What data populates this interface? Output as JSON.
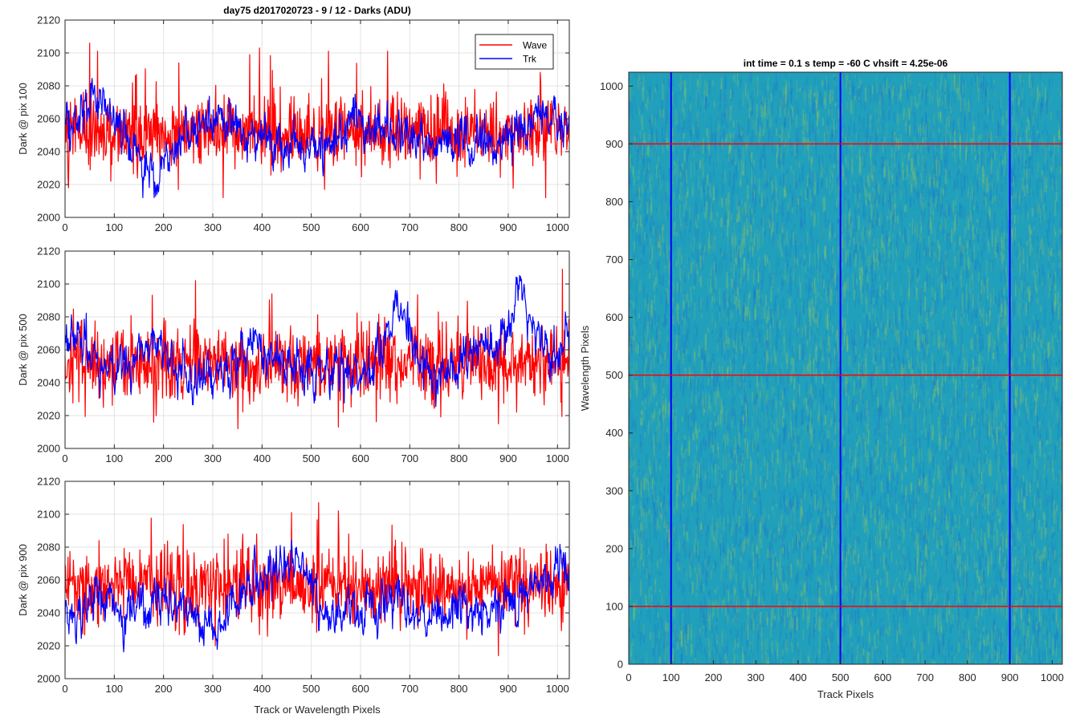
{
  "figure": {
    "title": "day75 d2017020723 - 9 / 12 - Darks (ADU)"
  },
  "chart_data": [
    {
      "type": "line",
      "title": "day75 d2017020723 - 9 / 12 - Darks (ADU)",
      "ylabel": "Dark @ pix 100",
      "xlabel": "",
      "xlim": [
        0,
        1024
      ],
      "ylim": [
        2000,
        2120
      ],
      "xticks": [
        "0",
        "100",
        "200",
        "300",
        "400",
        "500",
        "600",
        "700",
        "800",
        "900",
        "1000"
      ],
      "yticks": [
        "2000",
        "2020",
        "2040",
        "2060",
        "2080",
        "2100",
        "2120"
      ],
      "grid": true,
      "legend": {
        "placement": "top-right",
        "entries": [
          "Wave",
          "Trk"
        ]
      },
      "series": [
        {
          "name": "Wave",
          "color": "#ff0000",
          "mean": 2052,
          "spread": 11,
          "peaks": [
            [
              50,
              2106
            ],
            [
              395,
              2103
            ],
            [
              375,
              2099
            ],
            [
              535,
              2101
            ],
            [
              655,
              2101
            ],
            [
              230,
              2017
            ],
            [
              7,
              2018
            ]
          ]
        },
        {
          "name": "Trk",
          "color": "#0000ff",
          "mean": 2050,
          "spread": 6,
          "hump": [
            [
              0,
              2052
            ],
            [
              40,
              2068
            ],
            [
              60,
              2073
            ],
            [
              100,
              2062
            ],
            [
              150,
              2035
            ],
            [
              180,
              2028
            ],
            [
              210,
              2040
            ],
            [
              300,
              2060
            ],
            [
              360,
              2050
            ],
            [
              450,
              2045
            ],
            [
              560,
              2048
            ],
            [
              580,
              2065
            ],
            [
              650,
              2052
            ],
            [
              750,
              2048
            ],
            [
              800,
              2045
            ],
            [
              900,
              2048
            ],
            [
              960,
              2065
            ],
            [
              1024,
              2050
            ]
          ]
        }
      ]
    },
    {
      "type": "line",
      "ylabel": "Dark @ pix 500",
      "xlabel": "",
      "xlim": [
        0,
        1024
      ],
      "ylim": [
        2000,
        2120
      ],
      "xticks": [
        "0",
        "100",
        "200",
        "300",
        "400",
        "500",
        "600",
        "700",
        "800",
        "900",
        "1000"
      ],
      "yticks": [
        "2000",
        "2020",
        "2040",
        "2060",
        "2080",
        "2100",
        "2120"
      ],
      "grid": true,
      "series": [
        {
          "name": "Wave",
          "color": "#ff0000",
          "mean": 2052,
          "spread": 11,
          "peaks": [
            [
              265,
              2102
            ],
            [
              1010,
              2109
            ],
            [
              420,
              2094
            ],
            [
              555,
              2013
            ],
            [
              880,
              2015
            ],
            [
              180,
              2016
            ]
          ]
        },
        {
          "name": "Trk",
          "color": "#0000ff",
          "mean": 2054,
          "spread": 6,
          "hump": [
            [
              0,
              2060
            ],
            [
              20,
              2075
            ],
            [
              60,
              2052
            ],
            [
              100,
              2050
            ],
            [
              170,
              2060
            ],
            [
              180,
              2080
            ],
            [
              200,
              2055
            ],
            [
              280,
              2040
            ],
            [
              350,
              2050
            ],
            [
              380,
              2072
            ],
            [
              420,
              2055
            ],
            [
              500,
              2045
            ],
            [
              560,
              2048
            ],
            [
              620,
              2050
            ],
            [
              660,
              2072
            ],
            [
              672,
              2098
            ],
            [
              700,
              2065
            ],
            [
              750,
              2042
            ],
            [
              800,
              2050
            ],
            [
              850,
              2065
            ],
            [
              900,
              2065
            ],
            [
              920,
              2100
            ],
            [
              926,
              2112
            ],
            [
              940,
              2080
            ],
            [
              980,
              2055
            ],
            [
              1024,
              2070
            ]
          ]
        }
      ]
    },
    {
      "type": "line",
      "ylabel": "Dark @ pix 900",
      "xlabel": "Track or Wavelength Pixels",
      "xlim": [
        0,
        1024
      ],
      "ylim": [
        2000,
        2120
      ],
      "xticks": [
        "0",
        "100",
        "200",
        "300",
        "400",
        "500",
        "600",
        "700",
        "800",
        "900",
        "1000"
      ],
      "yticks": [
        "2000",
        "2020",
        "2040",
        "2060",
        "2080",
        "2100",
        "2120"
      ],
      "grid": true,
      "series": [
        {
          "name": "Wave",
          "color": "#ff0000",
          "mean": 2056,
          "spread": 11,
          "peaks": [
            [
              515,
              2107
            ],
            [
              460,
              2101
            ],
            [
              555,
              2102
            ],
            [
              880,
              2014
            ],
            [
              305,
              2020
            ]
          ]
        },
        {
          "name": "Trk",
          "color": "#0000ff",
          "mean": 2045,
          "spread": 6,
          "hump": [
            [
              0,
              2042
            ],
            [
              20,
              2032
            ],
            [
              60,
              2052
            ],
            [
              120,
              2042
            ],
            [
              180,
              2048
            ],
            [
              250,
              2045
            ],
            [
              300,
              2030
            ],
            [
              350,
              2048
            ],
            [
              430,
              2065
            ],
            [
              460,
              2078
            ],
            [
              490,
              2062
            ],
            [
              520,
              2040
            ],
            [
              600,
              2040
            ],
            [
              660,
              2048
            ],
            [
              700,
              2042
            ],
            [
              800,
              2038
            ],
            [
              900,
              2045
            ],
            [
              950,
              2052
            ],
            [
              1000,
              2068
            ],
            [
              1024,
              2070
            ]
          ]
        }
      ]
    },
    {
      "type": "heatmap",
      "title": "int time = 0.1 s   temp = -60 C   vhsift = 4.25e-06",
      "xlabel": "Track Pixels",
      "ylabel": "Wavelength Pixels",
      "xlim": [
        0,
        1024
      ],
      "ylim": [
        0,
        1024
      ],
      "xticks": [
        "0",
        "100",
        "200",
        "300",
        "400",
        "500",
        "600",
        "700",
        "800",
        "900",
        "1000"
      ],
      "yticks": [
        "0",
        "100",
        "200",
        "300",
        "400",
        "500",
        "600",
        "700",
        "800",
        "900",
        "1000"
      ],
      "colormap": {
        "base": "#21a0bc",
        "low": "#1a78cc",
        "high": "#9bc95a"
      },
      "vertical_lines": {
        "color": "#0000ff",
        "x": [
          100,
          500,
          900
        ]
      },
      "horizontal_lines": {
        "color": "#ff0000",
        "y": [
          100,
          500,
          900
        ]
      }
    }
  ]
}
